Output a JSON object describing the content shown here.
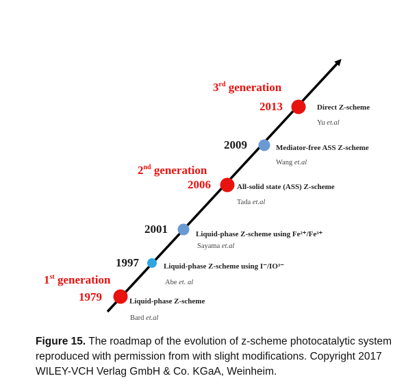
{
  "generations": [
    {
      "ordinal": "1",
      "suffix": "st",
      "word": "generation",
      "color": "#e8120f"
    },
    {
      "ordinal": "2",
      "suffix": "nd",
      "word": "generation",
      "color": "#e8120f"
    },
    {
      "ordinal": "3",
      "suffix": "rd",
      "word": "generation",
      "color": "#e8120f"
    }
  ],
  "milestones": [
    {
      "year": "1979",
      "title": "Liquid-phase Z-scheme",
      "author": "Bard",
      "etal": "et.al",
      "marker": "red",
      "year_color": "#e8120f"
    },
    {
      "year": "1997",
      "title": "Liquid-phase Z-scheme using I⁻/IO³⁻",
      "author": "Abe",
      "etal": "et. al",
      "marker": "light-blue",
      "year_color": "#1a1a1a"
    },
    {
      "year": "2001",
      "title": "Liquid-phase Z-scheme using Fe²⁺/Fe³⁺",
      "author": "Sayama",
      "etal": "et.al",
      "marker": "blue",
      "year_color": "#1a1a1a"
    },
    {
      "year": "2006",
      "title": "All-solid state (ASS) Z-scheme",
      "author": "Tada",
      "etal": "et.al",
      "marker": "red",
      "year_color": "#e8120f"
    },
    {
      "year": "2009",
      "title": "Mediator-free ASS Z-scheme",
      "author": "Wang",
      "etal": "et.al",
      "marker": "blue",
      "year_color": "#1a1a1a"
    },
    {
      "year": "2013",
      "title": "Direct Z-scheme",
      "author": "Yu",
      "etal": "et.al",
      "marker": "red",
      "year_color": "#e8120f"
    }
  ],
  "colors": {
    "red": "#e8120f",
    "blue": "#6a9ad4",
    "light-blue": "#2ea7e0",
    "line": "#000000"
  },
  "caption": {
    "label": "Figure 15.",
    "text": "The roadmap of the evolution of z-scheme photocatalytic system reproduced with permission from with slight modifications. Copyright 2017 WILEY-VCH Verlag GmbH & Co. KGaA, Weinheim."
  }
}
